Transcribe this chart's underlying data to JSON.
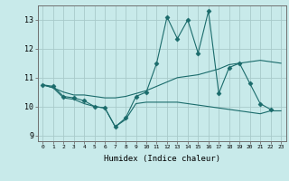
{
  "title": "",
  "xlabel": "Humidex (Indice chaleur)",
  "ylabel": "",
  "background_color": "#c8eaea",
  "grid_color": "#a8caca",
  "line_color": "#1a6b6b",
  "xlim": [
    -0.5,
    23.5
  ],
  "ylim": [
    8.8,
    13.5
  ],
  "yticks": [
    9,
    10,
    11,
    12,
    13
  ],
  "xticks": [
    0,
    1,
    2,
    3,
    4,
    5,
    6,
    7,
    8,
    9,
    10,
    11,
    12,
    13,
    14,
    15,
    16,
    17,
    18,
    19,
    20,
    21,
    22,
    23
  ],
  "line1_x": [
    0,
    1,
    2,
    3,
    4,
    5,
    6,
    7,
    8,
    9,
    10,
    11,
    12,
    13,
    14,
    15,
    16,
    17,
    18,
    19,
    20,
    21,
    22
  ],
  "line1_y": [
    10.75,
    10.7,
    10.35,
    10.3,
    10.2,
    10.0,
    9.95,
    9.3,
    9.6,
    10.35,
    10.5,
    11.5,
    13.1,
    12.35,
    13.0,
    11.85,
    13.3,
    10.45,
    11.35,
    11.5,
    10.8,
    10.1,
    9.9
  ],
  "line2_x": [
    0,
    1,
    2,
    3,
    4,
    5,
    6,
    7,
    8,
    9,
    10,
    11,
    12,
    13,
    14,
    15,
    16,
    17,
    18,
    19,
    20,
    21,
    22,
    23
  ],
  "line2_y": [
    10.75,
    10.65,
    10.5,
    10.4,
    10.4,
    10.35,
    10.3,
    10.3,
    10.35,
    10.45,
    10.55,
    10.7,
    10.85,
    11.0,
    11.05,
    11.1,
    11.2,
    11.3,
    11.45,
    11.5,
    11.55,
    11.6,
    11.55,
    11.5
  ],
  "line3_x": [
    0,
    1,
    2,
    3,
    4,
    5,
    6,
    7,
    8,
    9,
    10,
    11,
    12,
    13,
    14,
    15,
    16,
    17,
    18,
    19,
    20,
    21,
    22,
    23
  ],
  "line3_y": [
    10.75,
    10.65,
    10.3,
    10.25,
    10.1,
    10.0,
    9.95,
    9.3,
    9.55,
    10.1,
    10.15,
    10.15,
    10.15,
    10.15,
    10.1,
    10.05,
    10.0,
    9.95,
    9.9,
    9.85,
    9.8,
    9.75,
    9.85,
    9.85
  ]
}
